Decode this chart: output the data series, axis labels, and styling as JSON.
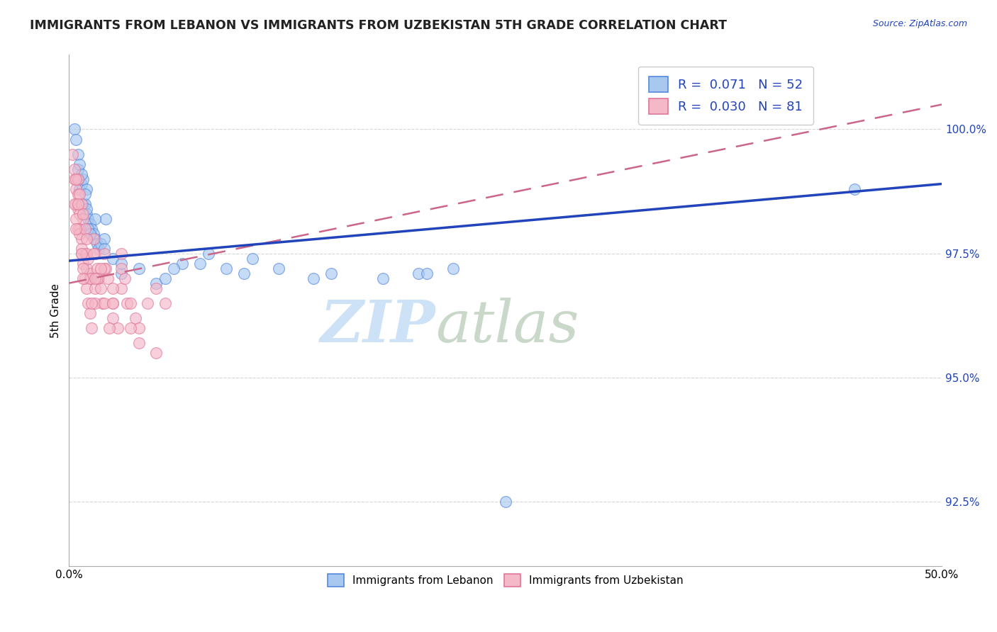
{
  "title": "IMMIGRANTS FROM LEBANON VS IMMIGRANTS FROM UZBEKISTAN 5TH GRADE CORRELATION CHART",
  "source": "Source: ZipAtlas.com",
  "ylabel": "5th Grade",
  "y_ticks": [
    92.5,
    95.0,
    97.5,
    100.0
  ],
  "y_tick_labels": [
    "92.5%",
    "95.0%",
    "97.5%",
    "100.0%"
  ],
  "xlim": [
    0.0,
    50.0
  ],
  "ylim": [
    91.2,
    101.5
  ],
  "legend1_label": "R =  0.071   N = 52",
  "legend2_label": "R =  0.030   N = 81",
  "color_lebanon": "#a8c8f0",
  "color_uzbekistan": "#f5b8c8",
  "edge_lebanon": "#5588dd",
  "edge_uzbekistan": "#dd7799",
  "trendline_color_lebanon": "#2244bb",
  "trendline_color_uzbekistan": "#cc6688",
  "lebanon_trendline_x": [
    0.0,
    50.0
  ],
  "lebanon_trendline_y": [
    97.35,
    98.9
  ],
  "uzbekistan_trendline_x": [
    0.0,
    50.0
  ],
  "uzbekistan_trendline_y": [
    96.9,
    100.5
  ],
  "lebanon_x": [
    0.3,
    0.4,
    0.5,
    0.5,
    0.6,
    0.7,
    0.8,
    0.8,
    0.9,
    1.0,
    1.0,
    1.1,
    1.2,
    1.3,
    1.4,
    1.5,
    1.6,
    1.7,
    1.8,
    2.0,
    2.1,
    2.5,
    3.0,
    4.0,
    5.0,
    6.5,
    7.5,
    8.0,
    9.0,
    10.0,
    12.0,
    14.0,
    45.0,
    20.0,
    22.0,
    0.5,
    0.6,
    0.7,
    0.9,
    1.0,
    1.1,
    1.2,
    1.5,
    2.0,
    3.0,
    5.5,
    6.0,
    10.5,
    15.0,
    18.0,
    20.5,
    25.0
  ],
  "lebanon_y": [
    100.0,
    99.8,
    99.5,
    99.2,
    98.8,
    98.9,
    99.0,
    98.5,
    98.5,
    98.3,
    98.8,
    98.2,
    98.1,
    98.0,
    97.9,
    97.8,
    97.7,
    97.6,
    97.7,
    97.8,
    98.2,
    97.4,
    97.1,
    97.2,
    96.9,
    97.3,
    97.3,
    97.5,
    97.2,
    97.1,
    97.2,
    97.0,
    98.8,
    97.1,
    97.2,
    99.0,
    99.3,
    99.1,
    98.7,
    98.4,
    98.0,
    97.9,
    98.2,
    97.6,
    97.3,
    97.0,
    97.2,
    97.4,
    97.1,
    97.0,
    97.1,
    92.5
  ],
  "uzbekistan_x": [
    0.2,
    0.3,
    0.3,
    0.4,
    0.4,
    0.5,
    0.5,
    0.6,
    0.6,
    0.7,
    0.7,
    0.8,
    0.8,
    0.9,
    0.9,
    1.0,
    1.0,
    1.1,
    1.1,
    1.2,
    1.2,
    1.3,
    1.3,
    1.4,
    1.5,
    1.5,
    1.6,
    1.7,
    1.8,
    1.9,
    2.0,
    2.1,
    2.2,
    2.5,
    2.5,
    2.8,
    3.0,
    3.0,
    3.3,
    3.5,
    3.8,
    4.0,
    4.5,
    5.0,
    5.5,
    0.3,
    0.4,
    0.5,
    0.6,
    0.7,
    0.8,
    1.0,
    1.2,
    1.5,
    2.0,
    2.5,
    3.0,
    4.0,
    5.0,
    3.2,
    1.3,
    1.8,
    2.3,
    0.5,
    0.6,
    0.7,
    0.8,
    0.9,
    1.4,
    1.6,
    2.0,
    3.5,
    0.4,
    0.4,
    0.5,
    0.7,
    0.8,
    1.0,
    1.5,
    2.5
  ],
  "uzbekistan_y": [
    99.5,
    99.2,
    99.0,
    98.8,
    98.5,
    98.4,
    98.7,
    98.3,
    98.0,
    97.8,
    97.5,
    98.2,
    97.3,
    97.0,
    97.5,
    97.2,
    96.8,
    97.4,
    96.5,
    97.1,
    96.3,
    97.0,
    96.0,
    97.8,
    96.8,
    97.5,
    97.2,
    97.0,
    96.8,
    96.5,
    97.5,
    97.2,
    97.0,
    96.5,
    96.2,
    96.0,
    97.2,
    96.8,
    96.5,
    96.5,
    96.2,
    96.0,
    96.5,
    96.8,
    96.5,
    98.5,
    98.2,
    98.0,
    97.9,
    97.6,
    97.2,
    97.5,
    97.0,
    96.5,
    97.2,
    96.8,
    97.5,
    95.7,
    95.5,
    97.0,
    96.5,
    97.2,
    96.0,
    99.0,
    98.7,
    98.5,
    98.3,
    98.0,
    97.5,
    97.0,
    96.5,
    96.0,
    98.0,
    99.0,
    98.5,
    97.5,
    97.0,
    97.8,
    97.0,
    96.5
  ]
}
